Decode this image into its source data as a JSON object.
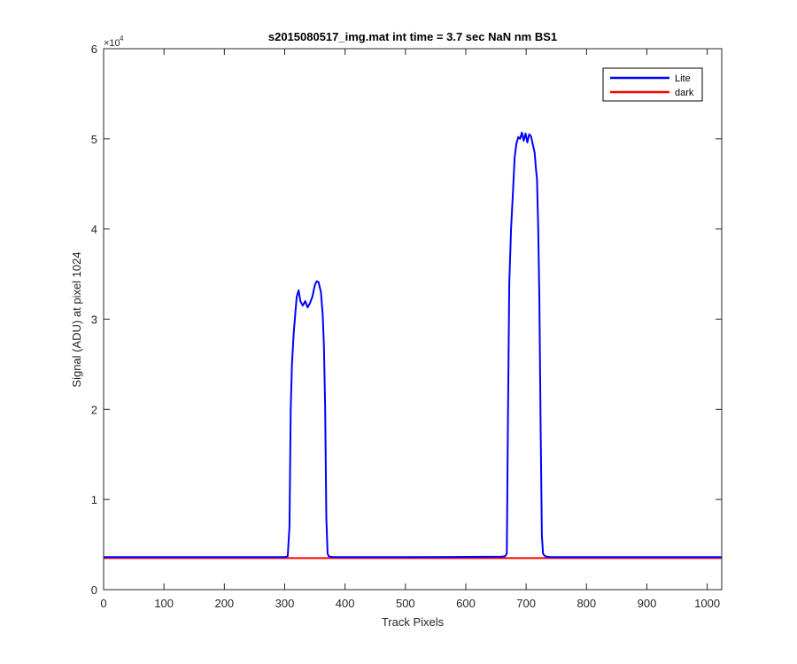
{
  "chart_data": {
    "type": "line",
    "title": "s2015080517_img.mat int time = 3.7 sec  NaN nm BS1",
    "xlabel": "Track Pixels",
    "ylabel": "Signal (ADU) at pixel 1024",
    "xlim": [
      0,
      1024
    ],
    "ylim": [
      0,
      60000
    ],
    "y_exponent_label": "×10",
    "y_exponent_power": "4",
    "x_ticks": [
      0,
      100,
      200,
      300,
      400,
      500,
      600,
      700,
      800,
      900,
      1000
    ],
    "x_tick_labels": [
      "0",
      "100",
      "200",
      "300",
      "400",
      "500",
      "600",
      "700",
      "800",
      "900",
      "1000"
    ],
    "y_ticks": [
      0,
      10000,
      20000,
      30000,
      40000,
      50000,
      60000
    ],
    "y_tick_labels": [
      "0",
      "1",
      "2",
      "3",
      "4",
      "5",
      "6"
    ],
    "grid": false,
    "legend_position": "top-right",
    "series": [
      {
        "name": "Lite",
        "color": "#0000ff",
        "x": [
          0,
          300,
          305,
          308,
          310,
          312,
          315,
          318,
          320,
          323,
          326,
          330,
          334,
          338,
          342,
          346,
          350,
          353,
          356,
          360,
          363,
          365,
          367,
          369,
          371,
          373,
          380,
          500,
          660,
          665,
          668,
          670,
          672,
          675,
          678,
          681,
          684,
          687,
          690,
          693,
          696,
          699,
          702,
          705,
          708,
          711,
          714,
          716,
          718,
          720,
          722,
          724,
          726,
          728,
          730,
          732,
          734,
          740,
          800,
          900,
          1024
        ],
        "y": [
          3600,
          3600,
          3700,
          7000,
          20000,
          25000,
          28500,
          31000,
          32500,
          33200,
          32000,
          31500,
          32000,
          31300,
          31800,
          32500,
          33800,
          34200,
          34100,
          33000,
          30500,
          27000,
          20000,
          8000,
          4000,
          3700,
          3600,
          3600,
          3650,
          3700,
          4000,
          20000,
          34000,
          40000,
          44000,
          48000,
          49500,
          50200,
          50000,
          50700,
          49800,
          50600,
          49600,
          50500,
          50300,
          49400,
          48500,
          46800,
          45500,
          40000,
          32000,
          18000,
          6000,
          4000,
          3800,
          3700,
          3650,
          3600,
          3600,
          3600,
          3600
        ]
      },
      {
        "name": "dark",
        "color": "#ff0000",
        "x": [
          0,
          1024
        ],
        "y": [
          3500,
          3500
        ]
      }
    ]
  }
}
